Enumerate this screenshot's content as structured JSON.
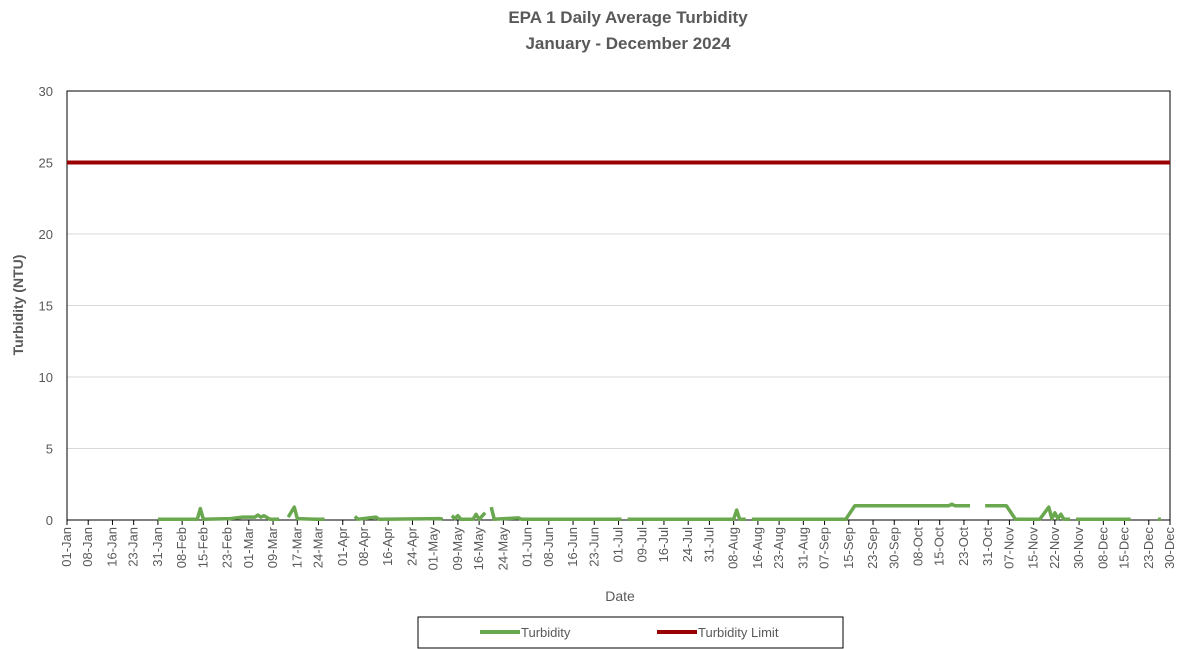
{
  "chart_data": {
    "type": "line",
    "title": "EPA 1 Daily Average Turbidity",
    "subtitle": "January - December 2024",
    "y_label": "Turbidity (NTU)",
    "x_label": "Date",
    "xlim": [
      "01-Jan",
      "30-Dec"
    ],
    "xticks": [
      "01-Jan",
      "08-Jan",
      "16-Jan",
      "23-Jan",
      "31-Jan",
      "08-Feb",
      "15-Feb",
      "23-Feb",
      "01-Mar",
      "09-Mar",
      "17-Mar",
      "24-Mar",
      "01-Apr",
      "08-Apr",
      "16-Apr",
      "24-Apr",
      "01-May",
      "09-May",
      "16-May",
      "24-May",
      "01-Jun",
      "08-Jun",
      "16-Jun",
      "23-Jun",
      "01-Jul",
      "09-Jul",
      "16-Jul",
      "24-Jul",
      "31-Jul",
      "08-Aug",
      "16-Aug",
      "23-Aug",
      "31-Aug",
      "07-Sep",
      "15-Sep",
      "23-Sep",
      "30-Sep",
      "08-Oct",
      "15-Oct",
      "23-Oct",
      "31-Oct",
      "07-Nov",
      "15-Nov",
      "22-Nov",
      "30-Nov",
      "08-Dec",
      "15-Dec",
      "23-Dec",
      "30-Dec"
    ],
    "ylim": [
      0,
      30
    ],
    "yticks": [
      0,
      5,
      10,
      15,
      20,
      25,
      30
    ],
    "grid": true,
    "legend": "bottom",
    "series": [
      {
        "name": "Turbidity",
        "color": "#6aa84f",
        "x": [
          "31-Jan",
          "13-Feb",
          "14-Feb",
          "15-Feb",
          "24-Feb",
          "28-Feb",
          "03-Mar",
          "04-Mar",
          "05-Mar",
          "06-Mar",
          "08-Mar",
          "11-Mar",
          "12-Mar",
          "14-Mar",
          "16-Mar",
          "17-Mar",
          "23-Mar",
          "26-Mar",
          "27-Mar",
          "05-Apr",
          "06-Apr",
          "12-Apr",
          "13-Apr",
          "03-May",
          "04-May",
          "05-May",
          "07-May",
          "08-May",
          "09-May",
          "10-May",
          "14-May",
          "15-May",
          "16-May",
          "18-May",
          "19-May",
          "20-May",
          "21-May",
          "29-May",
          "30-May",
          "02-Jul",
          "03-Jul",
          "04-Jul",
          "08-Aug",
          "09-Aug",
          "10-Aug",
          "12-Aug",
          "13-Aug",
          "14-Aug",
          "14-Sep",
          "17-Sep",
          "18-Oct",
          "19-Oct",
          "20-Oct",
          "25-Oct",
          "26-Oct",
          "30-Oct",
          "06-Nov",
          "09-Nov",
          "17-Nov",
          "20-Nov",
          "21-Nov",
          "22-Nov",
          "23-Nov",
          "24-Nov",
          "25-Nov",
          "27-Nov",
          "28-Nov",
          "29-Nov",
          "15-Dec",
          "17-Dec",
          "18-Dec",
          "26-Dec",
          "27-Dec"
        ],
        "values": [
          0.05,
          0.05,
          0.8,
          0.05,
          0.1,
          0.2,
          0.2,
          0.35,
          0.2,
          0.3,
          0.05,
          0.05,
          null,
          0.2,
          0.9,
          0.1,
          0.05,
          0.05,
          null,
          0.25,
          0.05,
          0.2,
          0.05,
          0.1,
          0.05,
          null,
          0.3,
          0.1,
          0.3,
          0.05,
          0.05,
          0.4,
          0.05,
          0.5,
          null,
          0.9,
          0.05,
          0.15,
          0.05,
          0.05,
          null,
          0.05,
          0.05,
          0.7,
          0.05,
          0.05,
          null,
          0.05,
          0.05,
          1.0,
          1.0,
          1.1,
          1.0,
          1.0,
          null,
          1.0,
          1.0,
          0.05,
          0.05,
          0.9,
          0.1,
          0.5,
          0.1,
          0.4,
          0.05,
          0.05,
          null,
          0.05,
          0.05,
          0.05,
          null,
          0.05,
          0.05
        ]
      },
      {
        "name": "Turbidity Limit",
        "color": "#990000",
        "x": [
          "01-Jan",
          "30-Dec"
        ],
        "values": [
          25,
          25
        ]
      }
    ]
  }
}
